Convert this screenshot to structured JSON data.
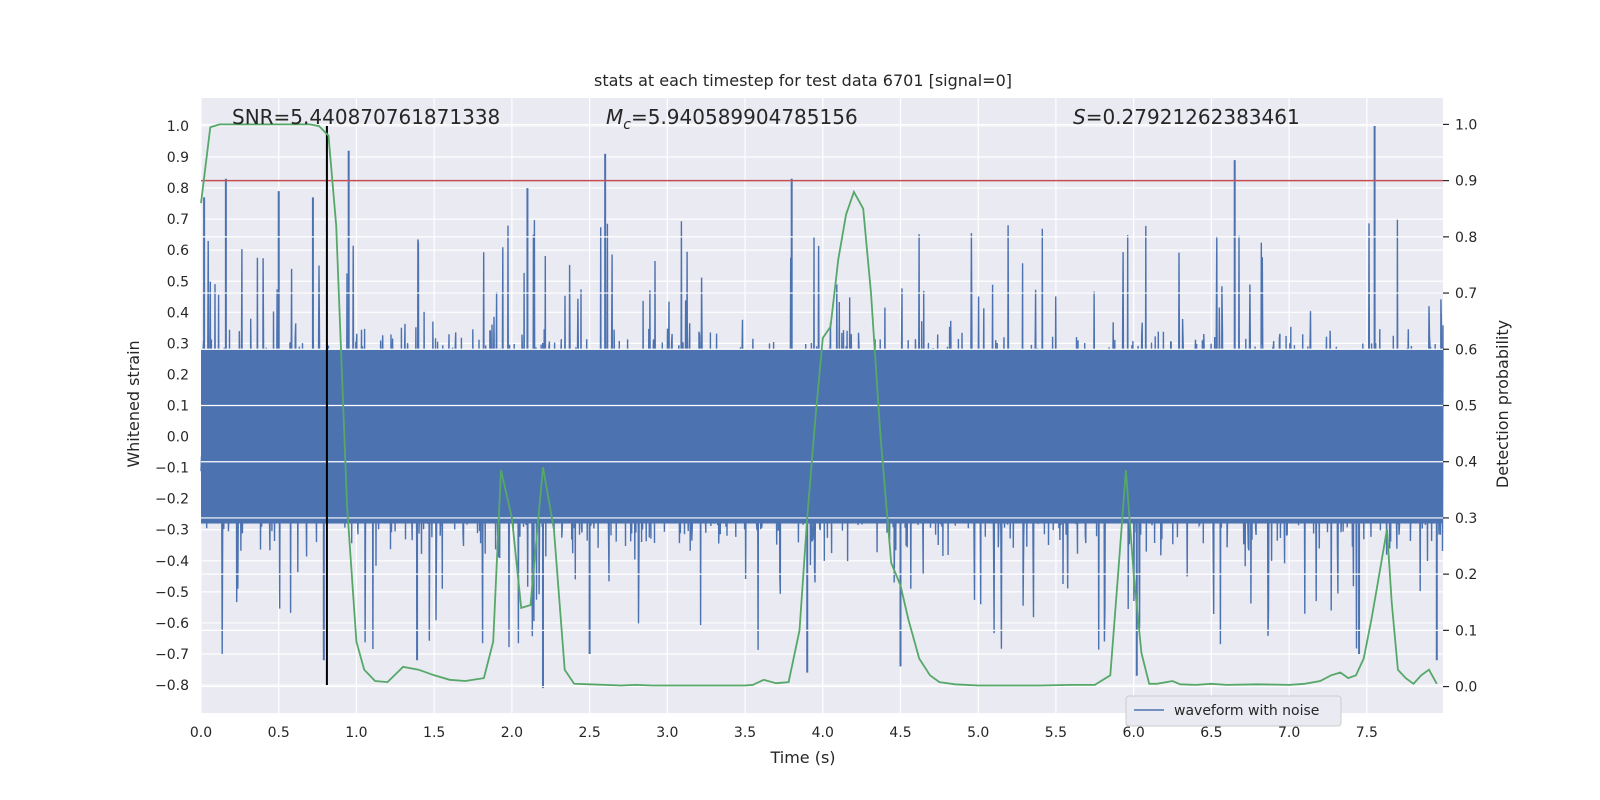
{
  "chart_data": {
    "type": "line",
    "title": "stats at each timestep for test data 6701 [signal=0]",
    "xlabel": "Time (s)",
    "ylabel": "Whitened strain",
    "y2label": "Detection probability",
    "xlim": [
      0,
      7.99
    ],
    "ylim": [
      -0.89,
      1.09
    ],
    "y2lim": [
      -0.047,
      1.047
    ],
    "x_ticks": [
      0.0,
      0.5,
      1.0,
      1.5,
      2.0,
      2.5,
      3.0,
      3.5,
      4.0,
      4.5,
      5.0,
      5.5,
      6.0,
      6.5,
      7.0,
      7.5
    ],
    "x_tick_labels": [
      "0.0",
      "0.5",
      "1.0",
      "1.5",
      "2.0",
      "2.5",
      "3.0",
      "3.5",
      "4.0",
      "4.5",
      "5.0",
      "5.5",
      "6.0",
      "6.5",
      "7.0",
      "7.5"
    ],
    "y_ticks": [
      1.0,
      0.9,
      0.8,
      0.7,
      0.6,
      0.5,
      0.4,
      0.3,
      0.2,
      0.1,
      0.0,
      -0.1,
      -0.2,
      -0.3,
      -0.4,
      -0.5,
      -0.6,
      -0.7,
      -0.8
    ],
    "y_tick_labels": [
      "1.0",
      "0.9",
      "0.8",
      "0.7",
      "0.6",
      "0.5",
      "0.4",
      "0.3",
      "0.2",
      "0.1",
      "0.0",
      "−0.1",
      "−0.2",
      "−0.3",
      "−0.4",
      "−0.5",
      "−0.6",
      "−0.7",
      "−0.8"
    ],
    "y2_ticks": [
      1.0,
      0.9,
      0.8,
      0.7,
      0.6,
      0.5,
      0.4,
      0.3,
      0.2,
      0.1,
      0.0
    ],
    "y2_tick_labels": [
      "1.0",
      "0.9",
      "0.8",
      "0.7",
      "0.6",
      "0.5",
      "0.4",
      "0.3",
      "0.2",
      "0.1",
      "0.0"
    ],
    "annotations": {
      "snr": "SNR=5.440870761871338",
      "mc_symbol": "M",
      "mc_sub": "c",
      "mc_value": "=5.940589904785156",
      "s_symbol": "S",
      "s_value": "=0.27921262383461"
    },
    "legend": {
      "label": "waveform with noise",
      "position": "lower-right"
    },
    "threshold_line": {
      "y2": 0.9,
      "color": "#c44e52"
    },
    "marker_line": {
      "x": 0.81,
      "y_range": [
        -0.8,
        1.0
      ],
      "color": "#000000"
    },
    "waveform": {
      "name": "waveform with noise",
      "color": "#4c72b0",
      "envelope_hint": "noise dense in [-0.35, 0.35] with spikes up to 1.0 and down to -0.8",
      "spikes": [
        [
          0.02,
          0.77
        ],
        [
          0.16,
          0.83
        ],
        [
          0.5,
          0.79
        ],
        [
          0.72,
          0.77
        ],
        [
          0.95,
          0.92
        ],
        [
          2.1,
          0.8
        ],
        [
          2.6,
          0.91
        ],
        [
          3.8,
          0.83
        ],
        [
          6.65,
          0.89
        ],
        [
          7.55,
          1.0
        ],
        [
          0.79,
          -0.72
        ],
        [
          1.39,
          -0.72
        ],
        [
          2.2,
          -0.81
        ],
        [
          2.5,
          -0.7
        ],
        [
          3.9,
          -0.76
        ],
        [
          4.5,
          -0.74
        ],
        [
          6.02,
          -0.77
        ],
        [
          7.45,
          -0.7
        ],
        [
          7.95,
          -0.72
        ]
      ]
    },
    "probability": {
      "name": "detection probability",
      "color": "#55a868",
      "x": [
        0.0,
        0.06,
        0.12,
        0.2,
        0.3,
        0.4,
        0.5,
        0.6,
        0.7,
        0.76,
        0.82,
        0.87,
        0.94,
        1.0,
        1.05,
        1.12,
        1.2,
        1.3,
        1.4,
        1.5,
        1.6,
        1.7,
        1.82,
        1.88,
        1.93,
        2.0,
        2.06,
        2.12,
        2.2,
        2.27,
        2.34,
        2.4,
        2.5,
        2.6,
        2.7,
        2.8,
        2.9,
        3.0,
        3.1,
        3.2,
        3.3,
        3.4,
        3.5,
        3.55,
        3.62,
        3.7,
        3.78,
        3.85,
        3.9,
        3.95,
        4.0,
        4.05,
        4.1,
        4.15,
        4.2,
        4.26,
        4.31,
        4.37,
        4.44,
        4.5,
        4.55,
        4.62,
        4.69,
        4.75,
        4.85,
        5.0,
        5.2,
        5.4,
        5.6,
        5.75,
        5.85,
        5.9,
        5.95,
        6.0,
        6.05,
        6.1,
        6.15,
        6.25,
        6.3,
        6.4,
        6.5,
        6.6,
        6.8,
        7.0,
        7.1,
        7.2,
        7.27,
        7.33,
        7.38,
        7.43,
        7.48,
        7.53,
        7.58,
        7.63,
        7.66,
        7.7,
        7.75,
        7.8,
        7.85,
        7.9,
        7.95
      ],
      "y": [
        0.86,
        0.995,
        1.0,
        1.0,
        1.0,
        1.0,
        1.0,
        1.0,
        1.0,
        0.997,
        0.98,
        0.82,
        0.32,
        0.08,
        0.03,
        0.01,
        0.008,
        0.035,
        0.03,
        0.02,
        0.012,
        0.01,
        0.015,
        0.08,
        0.385,
        0.3,
        0.14,
        0.145,
        0.39,
        0.28,
        0.03,
        0.005,
        0.004,
        0.003,
        0.002,
        0.003,
        0.002,
        0.002,
        0.002,
        0.002,
        0.002,
        0.002,
        0.002,
        0.003,
        0.012,
        0.006,
        0.008,
        0.1,
        0.3,
        0.47,
        0.62,
        0.64,
        0.76,
        0.84,
        0.88,
        0.85,
        0.7,
        0.45,
        0.22,
        0.18,
        0.12,
        0.05,
        0.02,
        0.008,
        0.004,
        0.002,
        0.002,
        0.002,
        0.003,
        0.003,
        0.02,
        0.2,
        0.385,
        0.2,
        0.06,
        0.005,
        0.005,
        0.01,
        0.004,
        0.003,
        0.005,
        0.003,
        0.004,
        0.003,
        0.005,
        0.01,
        0.02,
        0.025,
        0.015,
        0.02,
        0.05,
        0.12,
        0.2,
        0.28,
        0.15,
        0.03,
        0.015,
        0.005,
        0.02,
        0.03,
        0.005
      ]
    }
  }
}
